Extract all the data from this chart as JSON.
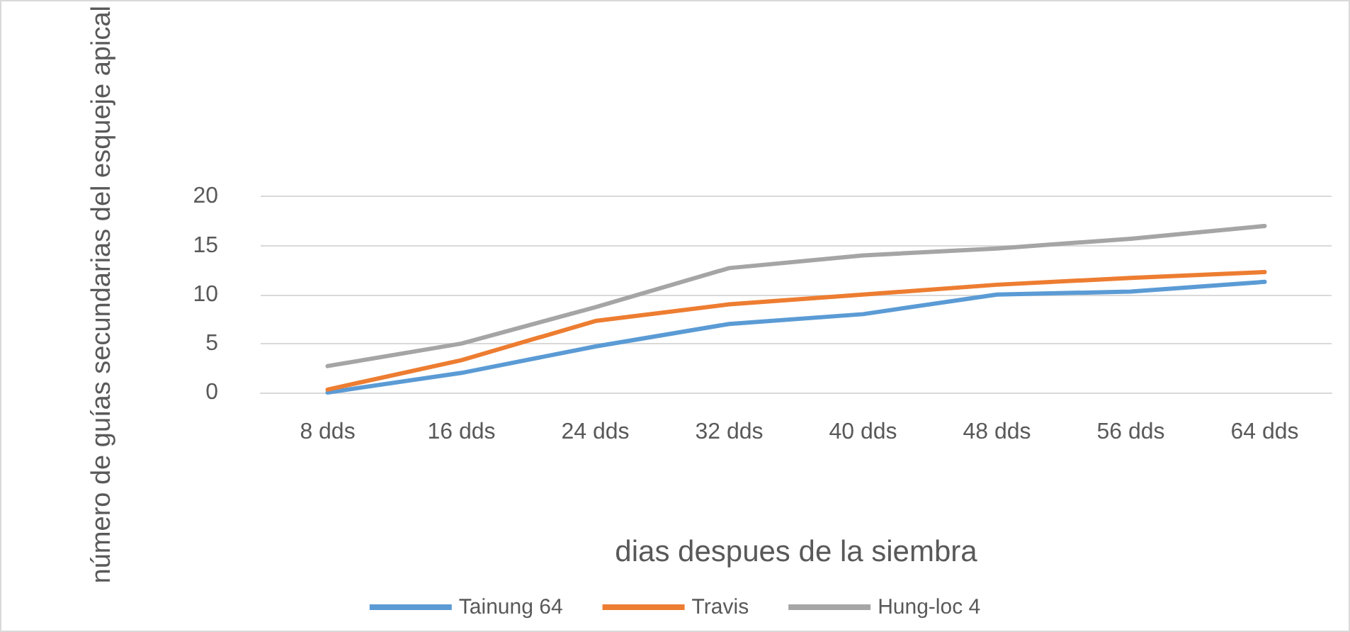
{
  "chart_data": {
    "type": "line",
    "xlabel": "dias despues de la siembra",
    "ylabel": "número de guías secundarias del esqueje apical",
    "categories": [
      "8 dds",
      "16 dds",
      "24 dds",
      "32 dds",
      "40 dds",
      "48 dds",
      "56 dds",
      "64 dds"
    ],
    "series": [
      {
        "name": "Tainung 64",
        "color": "#5b9bd5",
        "values": [
          0,
          2,
          4.7,
          7,
          8,
          10,
          10.3,
          11.3
        ]
      },
      {
        "name": "Travis",
        "color": "#ed7d31",
        "values": [
          0.3,
          3.3,
          7.3,
          9,
          10,
          11,
          11.7,
          12.3
        ]
      },
      {
        "name": "Hung-loc 4",
        "color": "#a5a5a5",
        "values": [
          2.7,
          5,
          8.7,
          12.7,
          14,
          14.7,
          15.7,
          17
        ]
      }
    ],
    "ylim": [
      0,
      20
    ],
    "yticks": [
      0,
      5,
      10,
      15,
      20
    ],
    "grid": "y",
    "legend": "bottom",
    "marker": "none",
    "line_style": "solid"
  }
}
